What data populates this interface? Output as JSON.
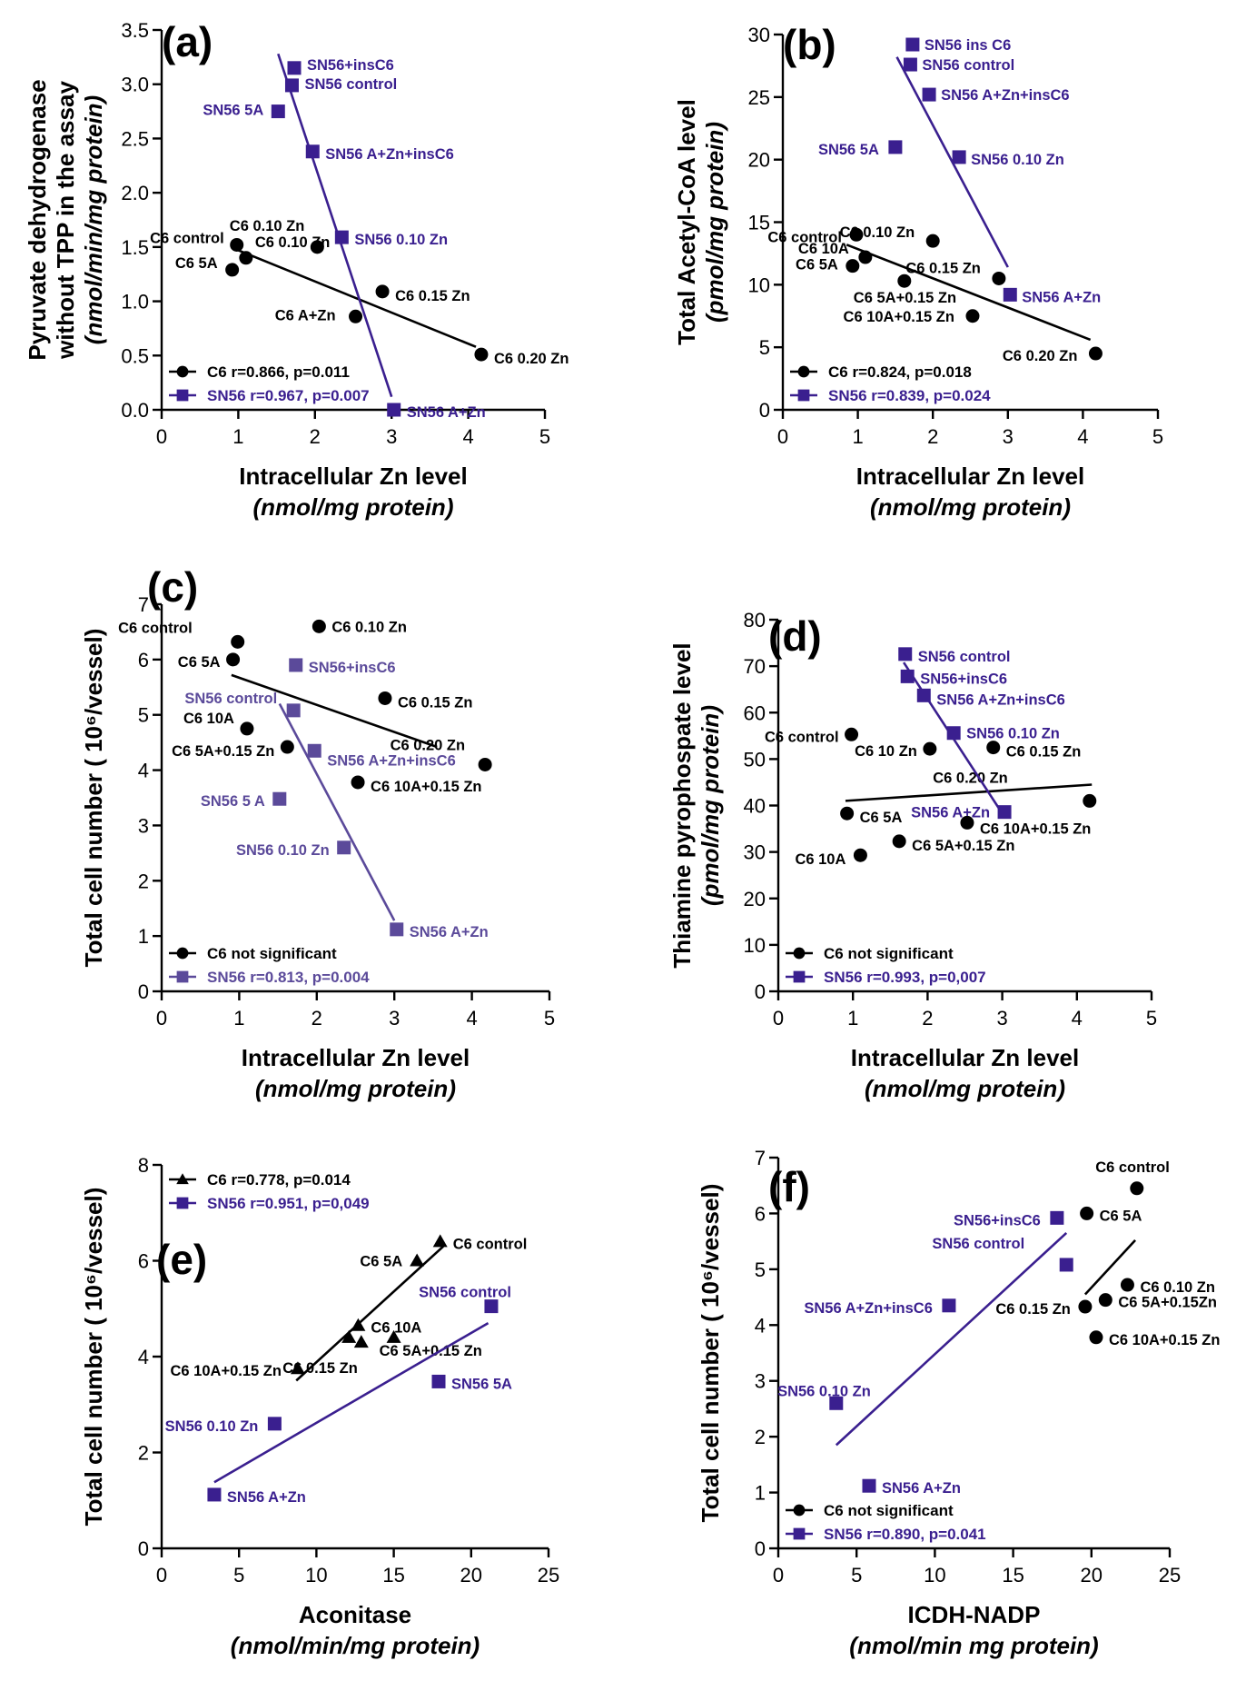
{
  "colors": {
    "c6": "#000000",
    "sn56": "#3a1f8f",
    "sn56_alt": "#5b4a9a"
  },
  "chart_data": [
    {
      "type": "scatter",
      "panel_label": "(a)",
      "xlabel": "Intracellular Zn level",
      "xlabel_unit": "(nmol/mg protein)",
      "ylabel_lines": [
        "Pyruvate dehydrogenase",
        "without TPP in the assay"
      ],
      "ylabel_unit": "(nmol/min/mg protein)",
      "xlim": [
        0,
        5
      ],
      "ylim": [
        0,
        3.5
      ],
      "xticks": [
        0,
        1,
        2,
        3,
        4,
        5
      ],
      "yticks": [
        0.0,
        0.5,
        1.0,
        1.5,
        2.0,
        2.5,
        3.0,
        3.5
      ],
      "ytick_labels": [
        "0.0",
        "0.5",
        "1.0",
        "1.5",
        "2.0",
        "2.5",
        "3.0",
        "3.5"
      ],
      "legend": [
        {
          "series": "C6",
          "marker": "circle",
          "label": "C6 r=0.866, p=0.011"
        },
        {
          "series": "SN56",
          "marker": "square",
          "label": "SN56 r=0.967, p=0.007"
        }
      ],
      "series": [
        {
          "name": "C6",
          "marker": "circle",
          "points": [
            {
              "x": 0.98,
              "y": 1.52,
              "label": "C6 control"
            },
            {
              "x": 1.1,
              "y": 1.4,
              "label": "C6 0.10 Zn"
            },
            {
              "x": 0.92,
              "y": 1.29,
              "label": "C6 5A"
            },
            {
              "x": 2.03,
              "y": 1.5,
              "label": "C6 0.10 Zn"
            },
            {
              "x": 2.88,
              "y": 1.09,
              "label": "C6 0.15 Zn"
            },
            {
              "x": 2.53,
              "y": 0.86,
              "label": "C6 A+Zn"
            },
            {
              "x": 4.17,
              "y": 0.51,
              "label": "C6 0.20 Zn"
            }
          ],
          "fit": [
            [
              1.0,
              1.47
            ],
            [
              4.1,
              0.58
            ]
          ]
        },
        {
          "name": "SN56",
          "marker": "square",
          "points": [
            {
              "x": 1.73,
              "y": 3.15,
              "label": "SN56+insC6"
            },
            {
              "x": 1.7,
              "y": 2.99,
              "label": "SN56 control"
            },
            {
              "x": 1.52,
              "y": 2.75,
              "label": "SN56 5A"
            },
            {
              "x": 1.97,
              "y": 2.38,
              "label": "SN56 A+Zn+insC6"
            },
            {
              "x": 2.35,
              "y": 1.59,
              "label": "SN56 0.10 Zn"
            },
            {
              "x": 3.03,
              "y": 0.0,
              "label": "SN56 A+Zn"
            }
          ],
          "fit": [
            [
              1.52,
              3.28
            ],
            [
              3.0,
              0.12
            ]
          ]
        }
      ]
    },
    {
      "type": "scatter",
      "panel_label": "(b)",
      "xlabel": "Intracellular Zn level",
      "xlabel_unit": "(nmol/mg protein)",
      "ylabel_lines": [
        "Total Acetyl-CoA level"
      ],
      "ylabel_unit": "(pmol/mg protein)",
      "xlim": [
        0,
        5
      ],
      "ylim": [
        0,
        30
      ],
      "xticks": [
        0,
        1,
        2,
        3,
        4,
        5
      ],
      "yticks": [
        0,
        5,
        10,
        15,
        20,
        25,
        30
      ],
      "ytick_labels": [
        "0",
        "5",
        "10",
        "15",
        "20",
        "25",
        "30"
      ],
      "legend": [
        {
          "series": "C6",
          "marker": "circle",
          "label": "C6 r=0.824, p=0.018"
        },
        {
          "series": "SN56",
          "marker": "square",
          "label": "SN56 r=0.839, p=0.024"
        }
      ],
      "series": [
        {
          "name": "C6",
          "marker": "circle",
          "points": [
            {
              "x": 0.98,
              "y": 14.0,
              "label": "C6 control"
            },
            {
              "x": 2.0,
              "y": 13.5,
              "label": "C6 0.10 Zn"
            },
            {
              "x": 1.1,
              "y": 12.2,
              "label": "C6 10A"
            },
            {
              "x": 0.93,
              "y": 11.5,
              "label": "C6 5A"
            },
            {
              "x": 2.88,
              "y": 10.5,
              "label": "C6 0.15 Zn"
            },
            {
              "x": 1.62,
              "y": 10.3,
              "label": "C6 5A+0.15 Zn"
            },
            {
              "x": 2.53,
              "y": 7.5,
              "label": "C6 10A+0.15 Zn"
            },
            {
              "x": 4.17,
              "y": 4.5,
              "label": "C6 0.20 Zn"
            }
          ],
          "fit": [
            [
              0.85,
              13.2
            ],
            [
              4.1,
              5.6
            ]
          ]
        },
        {
          "name": "SN56",
          "marker": "square",
          "points": [
            {
              "x": 1.73,
              "y": 29.2,
              "label": "SN56 ins C6"
            },
            {
              "x": 1.7,
              "y": 27.6,
              "label": "SN56 control"
            },
            {
              "x": 1.95,
              "y": 25.2,
              "label": "SN56 A+Zn+insC6"
            },
            {
              "x": 1.5,
              "y": 21.0,
              "label": "SN56 5A"
            },
            {
              "x": 2.35,
              "y": 20.2,
              "label": "SN56 0.10 Zn"
            },
            {
              "x": 3.03,
              "y": 9.2,
              "label": "SN56 A+Zn"
            }
          ],
          "fit": [
            [
              1.52,
              28.2
            ],
            [
              3.0,
              11.4
            ]
          ]
        }
      ]
    },
    {
      "type": "scatter",
      "panel_label": "(c)",
      "xlabel": "Intracellular Zn level",
      "xlabel_unit": "(nmol/mg protein)",
      "ylabel_lines": [
        "Total cell number ( 10⁶/vessel)"
      ],
      "ylabel_unit": "",
      "xlim": [
        0,
        5
      ],
      "ylim": [
        0,
        7
      ],
      "xticks": [
        0,
        1,
        2,
        3,
        4,
        5
      ],
      "yticks": [
        0,
        1,
        2,
        3,
        4,
        5,
        6,
        7
      ],
      "ytick_labels": [
        "0",
        "1",
        "2",
        "3",
        "4",
        "5",
        "6",
        "7"
      ],
      "legend": [
        {
          "series": "C6",
          "marker": "circle",
          "label": "C6 not significant"
        },
        {
          "series": "SN56",
          "marker": "square",
          "label": "SN56 r=0.813, p=0.004"
        }
      ],
      "series": [
        {
          "name": "C6",
          "marker": "circle",
          "points": [
            {
              "x": 0.98,
              "y": 6.32,
              "label": "C6 control"
            },
            {
              "x": 2.03,
              "y": 6.6,
              "label": "C6 0.10 Zn"
            },
            {
              "x": 0.92,
              "y": 6.0,
              "label": "C6 5A"
            },
            {
              "x": 2.88,
              "y": 5.3,
              "label": "C6 0.15 Zn"
            },
            {
              "x": 1.1,
              "y": 4.75,
              "label": "C6 10A"
            },
            {
              "x": 1.62,
              "y": 4.42,
              "label": "C6 5A+0.15 Zn"
            },
            {
              "x": 4.17,
              "y": 4.1,
              "label": "C6 0.20 Zn"
            },
            {
              "x": 2.53,
              "y": 3.78,
              "label": "C6 10A+0.15 Zn"
            }
          ],
          "fit": [
            [
              0.9,
              5.72
            ],
            [
              3.55,
              4.42
            ]
          ]
        },
        {
          "name": "SN56",
          "marker": "square",
          "points": [
            {
              "x": 1.73,
              "y": 5.9,
              "label": "SN56+insC6"
            },
            {
              "x": 1.7,
              "y": 5.08,
              "label": "SN56 control"
            },
            {
              "x": 1.97,
              "y": 4.35,
              "label": "SN56 A+Zn+insC6"
            },
            {
              "x": 1.52,
              "y": 3.48,
              "label": "SN56 5 A"
            },
            {
              "x": 2.35,
              "y": 2.6,
              "label": "SN56 0.10 Zn"
            },
            {
              "x": 3.03,
              "y": 1.12,
              "label": "SN56 A+Zn"
            }
          ],
          "fit": [
            [
              1.52,
              5.2
            ],
            [
              3.0,
              1.28
            ]
          ]
        }
      ]
    },
    {
      "type": "scatter",
      "panel_label": "(d)",
      "xlabel": "Intracellular Zn level",
      "xlabel_unit": "(nmol/mg protein)",
      "ylabel_lines": [
        "Thiamine pyrophospate level"
      ],
      "ylabel_unit": "(pmol/mg protein)",
      "xlim": [
        0,
        5
      ],
      "ylim": [
        0,
        80
      ],
      "xticks": [
        0,
        1,
        2,
        3,
        4,
        5
      ],
      "yticks": [
        0,
        10,
        20,
        30,
        40,
        50,
        60,
        70,
        80
      ],
      "ytick_labels": [
        "0",
        "10",
        "20",
        "30",
        "40",
        "50",
        "60",
        "70",
        "80"
      ],
      "legend": [
        {
          "series": "C6",
          "marker": "circle",
          "label": "C6 not significant"
        },
        {
          "series": "SN56",
          "marker": "square",
          "label": "SN56 r=0.993, p=0,007"
        }
      ],
      "series": [
        {
          "name": "C6",
          "marker": "circle",
          "points": [
            {
              "x": 0.98,
              "y": 55.3,
              "label": "C6 control"
            },
            {
              "x": 2.03,
              "y": 52.2,
              "label": "C6 10 Zn"
            },
            {
              "x": 2.88,
              "y": 52.5,
              "label": "C6 0.15 Zn"
            },
            {
              "x": 4.17,
              "y": 41.0,
              "label": "C6 0.20 Zn"
            },
            {
              "x": 0.92,
              "y": 38.3,
              "label": "C6 5A"
            },
            {
              "x": 2.53,
              "y": 36.3,
              "label": "C6 10A+0.15 Zn"
            },
            {
              "x": 1.62,
              "y": 32.3,
              "label": "C6 5A+0.15 Zn"
            },
            {
              "x": 1.1,
              "y": 29.3,
              "label": "C6 10A"
            }
          ],
          "fit": [
            [
              0.9,
              41.0
            ],
            [
              4.2,
              44.5
            ]
          ]
        },
        {
          "name": "SN56",
          "marker": "square",
          "points": [
            {
              "x": 1.7,
              "y": 72.6,
              "label": "SN56 control"
            },
            {
              "x": 1.73,
              "y": 67.8,
              "label": "SN56+insC6"
            },
            {
              "x": 1.95,
              "y": 63.7,
              "label": "SN56 A+Zn+insC6"
            },
            {
              "x": 2.35,
              "y": 55.6,
              "label": "SN56 0.10 Zn"
            },
            {
              "x": 3.03,
              "y": 38.6,
              "label": "SN56 A+Zn"
            }
          ],
          "fit": [
            [
              1.68,
              70.8
            ],
            [
              3.02,
              37.8
            ]
          ]
        }
      ]
    },
    {
      "type": "scatter",
      "panel_label": "(e)",
      "xlabel": "Aconitase",
      "xlabel_unit": "(nmol/min/mg protein)",
      "ylabel_lines": [
        "Total cell number ( 10⁶/vessel)"
      ],
      "ylabel_unit": "",
      "xlim": [
        0,
        25
      ],
      "ylim": [
        0,
        8
      ],
      "xticks": [
        0,
        5,
        10,
        15,
        20,
        25
      ],
      "yticks": [
        0,
        2,
        4,
        6,
        8
      ],
      "ytick_labels": [
        "0",
        "2",
        "4",
        "6",
        "8"
      ],
      "legend": [
        {
          "series": "C6",
          "marker": "triangle",
          "label": "C6 r=0.778, p=0.014"
        },
        {
          "series": "SN56",
          "marker": "square",
          "label": "SN56 r=0.951, p=0,049"
        }
      ],
      "series": [
        {
          "name": "C6",
          "marker": "triangle",
          "points": [
            {
              "x": 18.0,
              "y": 6.4,
              "label": "C6 control"
            },
            {
              "x": 16.5,
              "y": 6.0,
              "label": "C6 5A"
            },
            {
              "x": 12.7,
              "y": 4.65,
              "label": "C6 10A"
            },
            {
              "x": 12.1,
              "y": 4.4,
              "label": ""
            },
            {
              "x": 12.9,
              "y": 4.3,
              "label": "C6 0.15 Zn"
            },
            {
              "x": 8.8,
              "y": 3.75,
              "label": "C6 10A+0.15 Zn"
            },
            {
              "x": 15.0,
              "y": 4.4,
              "label": "C6 5A+0.15 Zn"
            }
          ],
          "fit": [
            [
              8.7,
              3.5
            ],
            [
              18.2,
              6.3
            ]
          ]
        },
        {
          "name": "SN56",
          "marker": "square",
          "points": [
            {
              "x": 21.3,
              "y": 5.05,
              "label": "SN56 control"
            },
            {
              "x": 17.9,
              "y": 3.48,
              "label": "SN56 5A"
            },
            {
              "x": 7.3,
              "y": 2.6,
              "label": "SN56 0.10 Zn"
            },
            {
              "x": 3.4,
              "y": 1.12,
              "label": "SN56 A+Zn"
            }
          ],
          "fit": [
            [
              3.4,
              1.38
            ],
            [
              21.1,
              4.7
            ]
          ]
        }
      ]
    },
    {
      "type": "scatter",
      "panel_label": "(f)",
      "xlabel": "ICDH-NADP",
      "xlabel_unit": "(nmol/min mg protein)",
      "ylabel_lines": [
        "Total cell number ( 10⁶/vessel)"
      ],
      "ylabel_unit": "",
      "xlim": [
        0,
        25
      ],
      "ylim": [
        0,
        7
      ],
      "xticks": [
        0,
        5,
        10,
        15,
        20,
        25
      ],
      "yticks": [
        0,
        1,
        2,
        3,
        4,
        5,
        6,
        7
      ],
      "ytick_labels": [
        "0",
        "1",
        "2",
        "3",
        "4",
        "5",
        "6",
        "7"
      ],
      "legend": [
        {
          "series": "C6",
          "marker": "circle",
          "label": "C6 not significant"
        },
        {
          "series": "SN56",
          "marker": "square",
          "label": "SN56 r=0.890, p=0.041"
        }
      ],
      "series": [
        {
          "name": "C6",
          "marker": "circle",
          "points": [
            {
              "x": 22.9,
              "y": 6.45,
              "label": "C6 control"
            },
            {
              "x": 19.7,
              "y": 6.0,
              "label": "C6 5A"
            },
            {
              "x": 22.3,
              "y": 4.72,
              "label": "C6 0.10 Zn"
            },
            {
              "x": 20.9,
              "y": 4.45,
              "label": "C6 5A+0.15Zn"
            },
            {
              "x": 19.6,
              "y": 4.33,
              "label": "C6 0.15 Zn"
            },
            {
              "x": 20.3,
              "y": 3.78,
              "label": "C6 10A+0.15 Zn"
            }
          ],
          "fit": [
            [
              19.6,
              4.55
            ],
            [
              22.8,
              5.52
            ]
          ]
        },
        {
          "name": "SN56",
          "marker": "square",
          "points": [
            {
              "x": 17.8,
              "y": 5.92,
              "label": "SN56+insC6"
            },
            {
              "x": 18.4,
              "y": 5.08,
              "label": "SN56 control"
            },
            {
              "x": 10.9,
              "y": 4.35,
              "label": "SN56 A+Zn+insC6"
            },
            {
              "x": 3.7,
              "y": 2.6,
              "label": "SN56 0.10 Zn"
            },
            {
              "x": 5.8,
              "y": 1.12,
              "label": "SN56 A+Zn"
            }
          ],
          "fit": [
            [
              3.7,
              1.85
            ],
            [
              18.4,
              5.65
            ]
          ]
        }
      ]
    }
  ]
}
